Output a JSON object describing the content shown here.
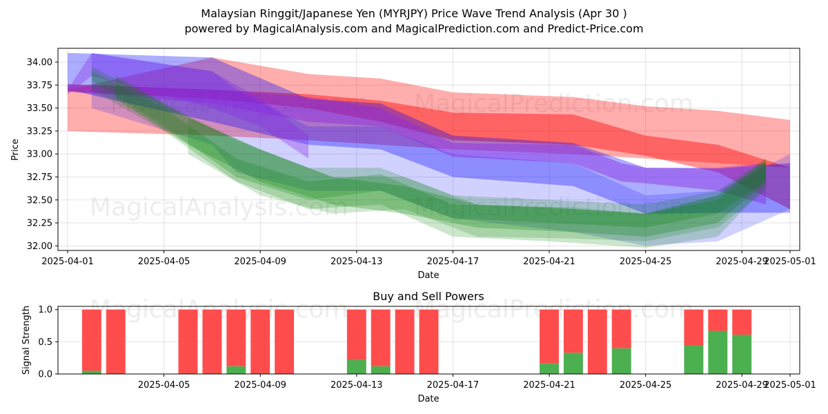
{
  "title_line1": "Malaysian Ringgit/Japanese Yen (MYRJPY) Price Wave Trend Analysis (Apr 30 )",
  "title_line2": "powered by MagicalAnalysis.com and MagicalPrediction.com and Predict-Price.com",
  "watermarks": [
    "MagicalAnalysis.com",
    "MagicalPrediction.com"
  ],
  "colors": {
    "red": "#ff0000",
    "blue": "#0000ff",
    "green": "#008000",
    "purple": "#8a2be2",
    "buy": "#4caf50",
    "sell": "#ff4d4d"
  },
  "chart_data": [
    {
      "type": "area",
      "xlabel": "Date",
      "ylabel": "Price",
      "xlim": [
        "2025-04-01",
        "2025-05-01"
      ],
      "ylim": [
        31.95,
        34.15
      ],
      "x_ticks": [
        "2025-04-01",
        "2025-04-05",
        "2025-04-09",
        "2025-04-13",
        "2025-04-17",
        "2025-04-21",
        "2025-04-25",
        "2025-04-29",
        "2025-05-01"
      ],
      "y_ticks": [
        "32.00",
        "32.25",
        "32.50",
        "32.75",
        "33.00",
        "33.25",
        "33.50",
        "33.75",
        "34.00"
      ],
      "grid": true,
      "bands": [
        {
          "color": "red",
          "opacity": 0.32,
          "x": [
            "2025-04-01",
            "2025-04-07",
            "2025-04-11",
            "2025-04-14",
            "2025-04-17",
            "2025-04-22",
            "2025-04-25",
            "2025-04-28",
            "2025-05-01"
          ],
          "upper": [
            33.7,
            34.05,
            33.87,
            33.82,
            33.67,
            33.62,
            33.52,
            33.47,
            33.37
          ],
          "lower": [
            33.25,
            33.2,
            33.15,
            33.1,
            33.05,
            33.0,
            32.95,
            32.9,
            32.85
          ]
        },
        {
          "color": "red",
          "opacity": 0.42,
          "x": [
            "2025-04-01",
            "2025-04-07",
            "2025-04-11",
            "2025-04-14",
            "2025-04-17",
            "2025-04-22",
            "2025-04-25",
            "2025-04-28",
            "2025-05-01"
          ],
          "upper": [
            33.76,
            33.7,
            33.65,
            33.58,
            33.45,
            33.43,
            33.2,
            33.1,
            32.85
          ],
          "lower": [
            33.68,
            33.6,
            33.5,
            33.35,
            33.15,
            33.1,
            32.98,
            32.8,
            32.4
          ]
        },
        {
          "color": "blue",
          "opacity": 0.32,
          "x": [
            "2025-04-01",
            "2025-04-07",
            "2025-04-11",
            "2025-04-14",
            "2025-04-17",
            "2025-04-22",
            "2025-04-25",
            "2025-04-28",
            "2025-05-01"
          ],
          "upper": [
            34.1,
            34.05,
            33.6,
            33.55,
            33.2,
            33.12,
            32.85,
            32.84,
            32.9
          ],
          "lower": [
            33.7,
            33.35,
            33.1,
            33.05,
            32.75,
            32.65,
            32.35,
            32.36,
            32.36
          ]
        },
        {
          "color": "blue",
          "opacity": 0.18,
          "x": [
            "2025-04-02",
            "2025-04-07",
            "2025-04-08",
            "2025-04-11",
            "2025-04-14",
            "2025-04-17",
            "2025-04-22",
            "2025-04-25",
            "2025-04-28",
            "2025-05-01"
          ],
          "upper": [
            34.1,
            33.9,
            33.7,
            33.3,
            33.3,
            33.0,
            32.9,
            32.55,
            32.6,
            33.0
          ],
          "lower": [
            33.5,
            33.1,
            32.8,
            32.6,
            32.6,
            32.3,
            32.15,
            32.0,
            32.05,
            32.4
          ]
        },
        {
          "color": "purple",
          "opacity": 0.45,
          "x": [
            "2025-04-01",
            "2025-04-07",
            "2025-04-11",
            "2025-04-14",
            "2025-04-17",
            "2025-04-22",
            "2025-04-24",
            "2025-04-25",
            "2025-04-28",
            "2025-04-30"
          ],
          "upper": [
            33.75,
            33.7,
            33.62,
            33.5,
            33.12,
            33.1,
            32.9,
            32.85,
            32.85,
            32.9
          ],
          "lower": [
            33.68,
            33.55,
            33.35,
            33.3,
            32.97,
            32.9,
            32.7,
            32.68,
            32.6,
            32.45
          ]
        },
        {
          "color": "purple",
          "opacity": 0.35,
          "x": [
            "2025-04-01",
            "2025-04-02",
            "2025-04-07",
            "2025-04-09",
            "2025-04-11"
          ],
          "upper": [
            33.7,
            34.1,
            33.9,
            33.6,
            33.2
          ],
          "lower": [
            33.65,
            33.85,
            33.5,
            33.3,
            32.95
          ]
        },
        {
          "color": "green",
          "opacity": 0.2,
          "x": [
            "2025-04-02",
            "2025-04-05",
            "2025-04-08",
            "2025-04-11",
            "2025-04-14",
            "2025-04-17",
            "2025-04-21",
            "2025-04-25",
            "2025-04-28",
            "2025-04-30"
          ],
          "upper": [
            33.95,
            33.55,
            33.15,
            32.85,
            32.85,
            32.55,
            32.5,
            32.45,
            32.6,
            32.95
          ],
          "lower": [
            33.7,
            33.25,
            32.7,
            32.4,
            32.45,
            32.1,
            32.05,
            31.98,
            32.1,
            32.65
          ]
        },
        {
          "color": "green",
          "opacity": 0.22,
          "x": [
            "2025-04-02",
            "2025-04-05",
            "2025-04-08",
            "2025-04-11",
            "2025-04-14",
            "2025-04-17",
            "2025-04-21",
            "2025-04-25",
            "2025-04-28",
            "2025-04-30"
          ],
          "upper": [
            33.9,
            33.5,
            32.95,
            32.7,
            32.78,
            32.45,
            32.42,
            32.35,
            32.55,
            32.92
          ],
          "lower": [
            33.8,
            33.3,
            32.75,
            32.5,
            32.6,
            32.3,
            32.25,
            32.2,
            32.35,
            32.72
          ]
        },
        {
          "color": "green",
          "opacity": 0.25,
          "x": [
            "2025-04-03",
            "2025-04-06",
            "2025-04-09",
            "2025-04-12",
            "2025-04-15",
            "2025-04-18",
            "2025-04-22",
            "2025-04-25",
            "2025-04-28",
            "2025-04-30"
          ],
          "upper": [
            33.85,
            33.4,
            33.05,
            32.75,
            32.65,
            32.45,
            32.4,
            32.35,
            32.5,
            32.9
          ],
          "lower": [
            33.6,
            33.1,
            32.7,
            32.45,
            32.35,
            32.2,
            32.15,
            32.1,
            32.25,
            32.7
          ]
        },
        {
          "color": "green",
          "opacity": 0.18,
          "x": [
            "2025-04-06",
            "2025-04-09",
            "2025-04-12",
            "2025-04-15",
            "2025-04-18",
            "2025-04-22",
            "2025-04-25",
            "2025-04-28",
            "2025-04-30"
          ],
          "upper": [
            33.4,
            33.05,
            32.75,
            32.75,
            32.45,
            32.42,
            32.35,
            32.55,
            32.95
          ],
          "lower": [
            33.0,
            32.55,
            32.35,
            32.4,
            32.1,
            32.08,
            32.05,
            32.2,
            32.6
          ]
        }
      ]
    },
    {
      "type": "bar",
      "title": "Buy and Sell Powers",
      "xlabel": "Date",
      "ylabel": "Signal Strength",
      "xlim": [
        "2025-04-01",
        "2025-05-01"
      ],
      "ylim": [
        0,
        1.05
      ],
      "x_ticks": [
        "2025-04-05",
        "2025-04-09",
        "2025-04-13",
        "2025-04-17",
        "2025-04-21",
        "2025-04-25",
        "2025-04-29",
        "2025-05-01"
      ],
      "y_ticks": [
        "0.0",
        "0.5",
        "1.0"
      ],
      "grid": true,
      "categories": [
        "2025-04-02",
        "2025-04-03",
        "2025-04-06",
        "2025-04-07",
        "2025-04-08",
        "2025-04-09",
        "2025-04-10",
        "2025-04-13",
        "2025-04-14",
        "2025-04-15",
        "2025-04-16",
        "2025-04-21",
        "2025-04-22",
        "2025-04-23",
        "2025-04-24",
        "2025-04-27",
        "2025-04-28",
        "2025-04-29"
      ],
      "series": [
        {
          "name": "buy",
          "values": [
            0.05,
            0.0,
            0.0,
            0.0,
            0.12,
            0.0,
            0.0,
            0.22,
            0.12,
            0.0,
            0.0,
            0.17,
            0.33,
            0.0,
            0.4,
            0.45,
            0.67,
            0.61
          ]
        },
        {
          "name": "sell",
          "values": [
            0.95,
            1.0,
            1.0,
            1.0,
            0.88,
            1.0,
            1.0,
            0.78,
            0.88,
            1.0,
            1.0,
            0.83,
            0.67,
            1.0,
            0.6,
            0.55,
            0.33,
            0.39
          ]
        }
      ]
    }
  ]
}
